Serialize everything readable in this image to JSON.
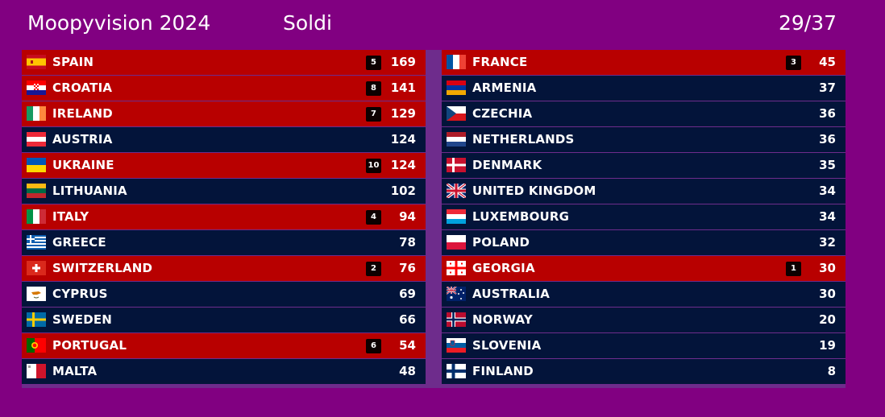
{
  "header": {
    "title": "Moopyvision 2024",
    "song": "Soldi",
    "progress": "29/37"
  },
  "colors": {
    "background": "#810081",
    "row_default": "#03143a",
    "row_highlight": "#b80000"
  },
  "scoreboard": {
    "left": [
      {
        "country": "SPAIN",
        "flag": "spain-flag-icon",
        "points": "5",
        "score": "169",
        "highlight": true
      },
      {
        "country": "CROATIA",
        "flag": "croatia-flag-icon",
        "points": "8",
        "score": "141",
        "highlight": true
      },
      {
        "country": "IRELAND",
        "flag": "ireland-flag-icon",
        "points": "7",
        "score": "129",
        "highlight": true
      },
      {
        "country": "AUSTRIA",
        "flag": "austria-flag-icon",
        "points": "",
        "score": "124",
        "highlight": false
      },
      {
        "country": "UKRAINE",
        "flag": "ukraine-flag-icon",
        "points": "10",
        "score": "124",
        "highlight": true
      },
      {
        "country": "LITHUANIA",
        "flag": "lithuania-flag-icon",
        "points": "",
        "score": "102",
        "highlight": false
      },
      {
        "country": "ITALY",
        "flag": "italy-flag-icon",
        "points": "4",
        "score": "94",
        "highlight": true
      },
      {
        "country": "GREECE",
        "flag": "greece-flag-icon",
        "points": "",
        "score": "78",
        "highlight": false
      },
      {
        "country": "SWITZERLAND",
        "flag": "switzerland-flag-icon",
        "points": "2",
        "score": "76",
        "highlight": true
      },
      {
        "country": "CYPRUS",
        "flag": "cyprus-flag-icon",
        "points": "",
        "score": "69",
        "highlight": false
      },
      {
        "country": "SWEDEN",
        "flag": "sweden-flag-icon",
        "points": "",
        "score": "66",
        "highlight": false
      },
      {
        "country": "PORTUGAL",
        "flag": "portugal-flag-icon",
        "points": "6",
        "score": "54",
        "highlight": true
      },
      {
        "country": "MALTA",
        "flag": "malta-flag-icon",
        "points": "",
        "score": "48",
        "highlight": false
      }
    ],
    "right": [
      {
        "country": "FRANCE",
        "flag": "france-flag-icon",
        "points": "3",
        "score": "45",
        "highlight": true
      },
      {
        "country": "ARMENIA",
        "flag": "armenia-flag-icon",
        "points": "",
        "score": "37",
        "highlight": false
      },
      {
        "country": "CZECHIA",
        "flag": "czechia-flag-icon",
        "points": "",
        "score": "36",
        "highlight": false
      },
      {
        "country": "NETHERLANDS",
        "flag": "netherlands-flag-icon",
        "points": "",
        "score": "36",
        "highlight": false
      },
      {
        "country": "DENMARK",
        "flag": "denmark-flag-icon",
        "points": "",
        "score": "35",
        "highlight": false
      },
      {
        "country": "UNITED KINGDOM",
        "flag": "united-kingdom-flag-icon",
        "points": "",
        "score": "34",
        "highlight": false
      },
      {
        "country": "LUXEMBOURG",
        "flag": "luxembourg-flag-icon",
        "points": "",
        "score": "34",
        "highlight": false
      },
      {
        "country": "POLAND",
        "flag": "poland-flag-icon",
        "points": "",
        "score": "32",
        "highlight": false
      },
      {
        "country": "GEORGIA",
        "flag": "georgia-flag-icon",
        "points": "1",
        "score": "30",
        "highlight": true
      },
      {
        "country": "AUSTRALIA",
        "flag": "australia-flag-icon",
        "points": "",
        "score": "30",
        "highlight": false
      },
      {
        "country": "NORWAY",
        "flag": "norway-flag-icon",
        "points": "",
        "score": "20",
        "highlight": false
      },
      {
        "country": "SLOVENIA",
        "flag": "slovenia-flag-icon",
        "points": "",
        "score": "19",
        "highlight": false
      },
      {
        "country": "FINLAND",
        "flag": "finland-flag-icon",
        "points": "",
        "score": "8",
        "highlight": false
      }
    ]
  }
}
